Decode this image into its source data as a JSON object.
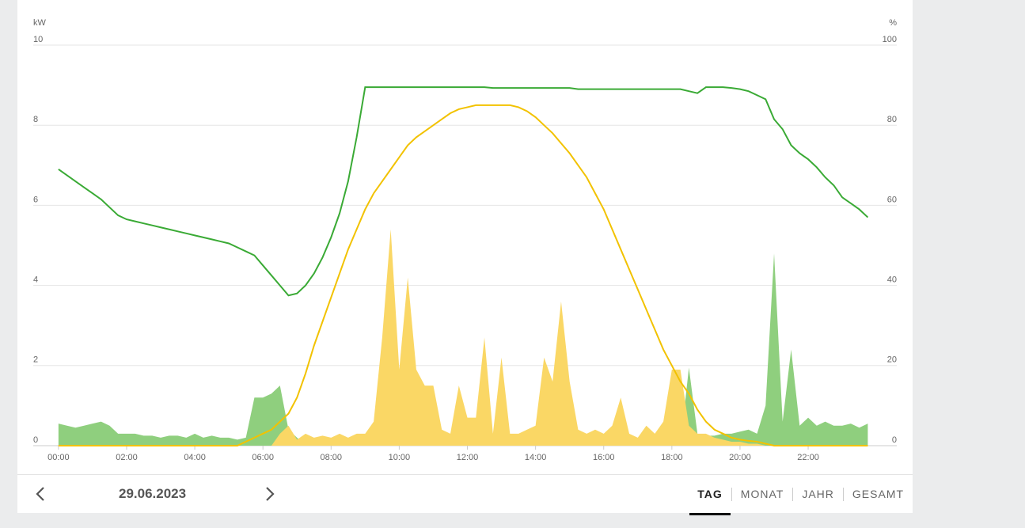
{
  "chart_data": {
    "type": "line",
    "ylabel": "kW",
    "y2label": "%",
    "x": [
      0,
      0.25,
      0.5,
      0.75,
      1,
      1.25,
      1.5,
      1.75,
      2,
      2.25,
      2.5,
      2.75,
      3,
      3.25,
      3.5,
      3.75,
      4,
      4.25,
      4.5,
      4.75,
      5,
      5.25,
      5.5,
      5.75,
      6,
      6.25,
      6.5,
      6.75,
      7,
      7.25,
      7.5,
      7.75,
      8,
      8.25,
      8.5,
      8.75,
      9,
      9.25,
      9.5,
      9.75,
      10,
      10.25,
      10.5,
      10.75,
      11,
      11.25,
      11.5,
      11.75,
      12,
      12.25,
      12.5,
      12.75,
      13,
      13.25,
      13.5,
      13.75,
      14,
      14.25,
      14.5,
      14.75,
      15,
      15.25,
      15.5,
      15.75,
      16,
      16.25,
      16.5,
      16.75,
      17,
      17.25,
      17.5,
      17.75,
      18,
      18.25,
      18.5,
      18.75,
      19,
      19.25,
      19.5,
      19.75,
      20,
      20.25,
      20.5,
      20.75,
      21,
      21.25,
      21.5,
      21.75,
      22,
      22.25,
      22.5,
      22.75,
      23,
      23.25,
      23.5,
      23.75
    ],
    "xlim": [
      -0.74,
      24.6
    ],
    "xticks": [
      {
        "value": 0,
        "label": "00:00"
      },
      {
        "value": 2,
        "label": "02:00"
      },
      {
        "value": 4,
        "label": "04:00"
      },
      {
        "value": 6,
        "label": "06:00"
      },
      {
        "value": 8,
        "label": "08:00"
      },
      {
        "value": 10,
        "label": "10:00"
      },
      {
        "value": 12,
        "label": "12:00"
      },
      {
        "value": 14,
        "label": "14:00"
      },
      {
        "value": 16,
        "label": "16:00"
      },
      {
        "value": 18,
        "label": "18:00"
      },
      {
        "value": 20,
        "label": "20:00"
      },
      {
        "value": 22,
        "label": "22:00"
      }
    ],
    "ylim": [
      0,
      10
    ],
    "yticks": [
      0,
      2,
      4,
      6,
      8,
      10
    ],
    "y2lim": [
      0,
      100
    ],
    "y2ticks": [
      0,
      20,
      40,
      60,
      80,
      100
    ],
    "grid": true,
    "series": [
      {
        "type": "area",
        "color": "#8fcf7e",
        "values": [
          0.55,
          0.5,
          0.45,
          0.5,
          0.55,
          0.6,
          0.5,
          0.3,
          0.3,
          0.3,
          0.25,
          0.25,
          0.2,
          0.25,
          0.25,
          0.2,
          0.3,
          0.2,
          0.25,
          0.2,
          0.2,
          0.15,
          0.2,
          1.2,
          1.2,
          1.3,
          1.5,
          0.4,
          0.2,
          0,
          0,
          0,
          0,
          0,
          0,
          0,
          0,
          0,
          0,
          0,
          0,
          0,
          0,
          0,
          0,
          0,
          0,
          0,
          0,
          0,
          0,
          0,
          0,
          0,
          0,
          0,
          0,
          0,
          0,
          0,
          0,
          0,
          0,
          0,
          0,
          0,
          0,
          0,
          0,
          0,
          0,
          0,
          0,
          0,
          1.95,
          0.3,
          0.25,
          0.25,
          0.3,
          0.3,
          0.35,
          0.4,
          0.3,
          1.0,
          4.8,
          0.6,
          2.4,
          0.5,
          0.7,
          0.5,
          0.6,
          0.5,
          0.5,
          0.55,
          0.45,
          0.55
        ]
      },
      {
        "type": "area",
        "color": "#fad765",
        "values": [
          0,
          0,
          0,
          0,
          0,
          0,
          0,
          0,
          0,
          0,
          0,
          0,
          0,
          0,
          0,
          0,
          0,
          0,
          0,
          0,
          0,
          0,
          0,
          0,
          0,
          0,
          0.3,
          0.5,
          0.15,
          0.3,
          0.2,
          0.25,
          0.2,
          0.3,
          0.2,
          0.3,
          0.3,
          0.6,
          2.7,
          5.4,
          1.9,
          4.2,
          1.9,
          1.5,
          1.5,
          0.4,
          0.3,
          1.5,
          0.7,
          0.7,
          2.7,
          0.3,
          2.2,
          0.3,
          0.3,
          0.4,
          0.5,
          2.2,
          1.6,
          3.6,
          1.6,
          0.4,
          0.3,
          0.4,
          0.3,
          0.5,
          1.2,
          0.3,
          0.2,
          0.5,
          0.3,
          0.6,
          1.9,
          1.9,
          0.5,
          0.3,
          0.3,
          0.2,
          0.15,
          0.1,
          0.1,
          0.05,
          0.05,
          0,
          0,
          0,
          0,
          0,
          0,
          0,
          0,
          0,
          0,
          0,
          0,
          0
        ]
      },
      {
        "type": "line",
        "color": "#f2c200",
        "values": [
          0,
          0,
          0,
          0,
          0,
          0,
          0,
          0,
          0,
          0,
          0,
          0,
          0,
          0,
          0,
          0,
          0,
          0,
          0,
          0,
          0,
          0,
          0.1,
          0.2,
          0.3,
          0.4,
          0.6,
          0.8,
          1.2,
          1.8,
          2.5,
          3.1,
          3.7,
          4.3,
          4.9,
          5.4,
          5.9,
          6.3,
          6.6,
          6.9,
          7.2,
          7.5,
          7.7,
          7.85,
          8.0,
          8.15,
          8.3,
          8.4,
          8.45,
          8.5,
          8.5,
          8.5,
          8.5,
          8.5,
          8.45,
          8.35,
          8.2,
          8.0,
          7.8,
          7.55,
          7.3,
          7.0,
          6.7,
          6.3,
          5.9,
          5.4,
          4.9,
          4.4,
          3.9,
          3.4,
          2.9,
          2.4,
          2.0,
          1.6,
          1.3,
          0.9,
          0.6,
          0.4,
          0.3,
          0.2,
          0.15,
          0.12,
          0.1,
          0.05,
          0,
          0,
          0,
          0,
          0,
          0,
          0,
          0,
          0,
          0,
          0,
          0
        ]
      },
      {
        "type": "line",
        "axis": "y2",
        "color": "#3aaa35",
        "values": [
          69,
          67.5,
          66,
          64.5,
          63,
          61.5,
          59.5,
          57.5,
          56.5,
          56,
          55.5,
          55,
          54.5,
          54,
          53.5,
          53,
          52.5,
          52,
          51.5,
          51,
          50.5,
          49.5,
          48.5,
          47.5,
          45,
          42.5,
          40,
          37.5,
          38,
          40,
          43,
          47,
          52,
          58,
          66,
          77,
          89.5,
          89.5,
          89.5,
          89.5,
          89.5,
          89.5,
          89.5,
          89.5,
          89.5,
          89.5,
          89.5,
          89.5,
          89.5,
          89.5,
          89.5,
          89.3,
          89.3,
          89.3,
          89.3,
          89.3,
          89.3,
          89.3,
          89.3,
          89.3,
          89.3,
          89,
          89,
          89,
          89,
          89,
          89,
          89,
          89,
          89,
          89,
          89,
          89,
          89,
          88.5,
          88,
          89.5,
          89.5,
          89.5,
          89.3,
          89,
          88.5,
          87.5,
          86.5,
          81.5,
          79,
          75,
          73,
          71.5,
          69.5,
          67,
          65,
          62,
          60.5,
          59,
          57
        ]
      }
    ]
  },
  "nav": {
    "date": "29.06.2023",
    "tabs": [
      "TAG",
      "MONAT",
      "JAHR",
      "GESAMT"
    ],
    "active": 0
  }
}
